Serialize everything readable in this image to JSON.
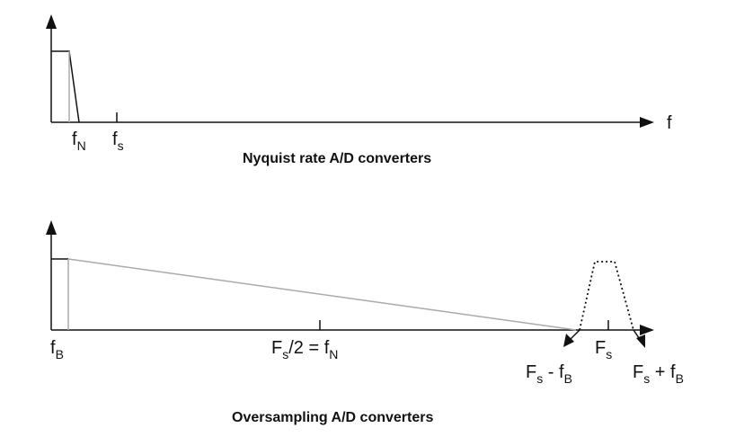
{
  "top_diagram": {
    "title": "Nyquist rate A/D converters",
    "axis_label": "f",
    "label_fN_main": "f",
    "label_fN_sub": "N",
    "label_fs_main": "f",
    "label_fs_sub": "s"
  },
  "bottom_diagram": {
    "title": "Oversampling A/D converters",
    "label_fB_main": "f",
    "label_fB_sub": "B",
    "label_mid_F": "F",
    "label_mid_s": "s",
    "label_mid_rest": "/2 = f",
    "label_mid_N": "N",
    "label_Fs_main": "F",
    "label_Fs_sub": "s",
    "label_minus_F": "F",
    "label_minus_s": "s",
    "label_minus_op": " - f",
    "label_minus_B": "B",
    "label_plus_F": "F",
    "label_plus_s": "s",
    "label_plus_op": " + f",
    "label_plus_B": "B"
  },
  "colors": {
    "line": "#111111",
    "gray": "#aaaaaa"
  }
}
